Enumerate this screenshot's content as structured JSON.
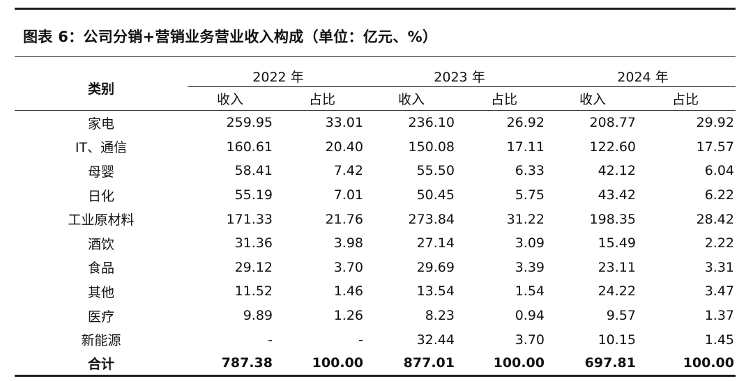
{
  "caption": "图表 6：公司分销+营销业务营业收入构成（单位：亿元、%）",
  "header": {
    "category_label": "类别",
    "years": [
      "2022 年",
      "2023 年",
      "2024 年"
    ],
    "revenue_label": "收入",
    "share_label": "占比"
  },
  "rows": [
    {
      "name": "家电",
      "v": [
        "259.95",
        "33.01",
        "236.10",
        "26.92",
        "208.77",
        "29.92"
      ]
    },
    {
      "name": "IT、通信",
      "v": [
        "160.61",
        "20.40",
        "150.08",
        "17.11",
        "122.60",
        "17.57"
      ]
    },
    {
      "name": "母婴",
      "v": [
        "58.41",
        "7.42",
        "55.50",
        "6.33",
        "42.12",
        "6.04"
      ]
    },
    {
      "name": "日化",
      "v": [
        "55.19",
        "7.01",
        "50.45",
        "5.75",
        "43.42",
        "6.22"
      ]
    },
    {
      "name": "工业原材料",
      "v": [
        "171.33",
        "21.76",
        "273.84",
        "31.22",
        "198.35",
        "28.42"
      ]
    },
    {
      "name": "酒饮",
      "v": [
        "31.36",
        "3.98",
        "27.14",
        "3.09",
        "15.49",
        "2.22"
      ]
    },
    {
      "name": "食品",
      "v": [
        "29.12",
        "3.70",
        "29.69",
        "3.39",
        "23.11",
        "3.31"
      ]
    },
    {
      "name": "其他",
      "v": [
        "11.52",
        "1.46",
        "13.54",
        "1.54",
        "24.22",
        "3.47"
      ]
    },
    {
      "name": "医疗",
      "v": [
        "9.89",
        "1.26",
        "8.23",
        "0.94",
        "9.57",
        "1.37"
      ]
    },
    {
      "name": "新能源",
      "v": [
        "-",
        "-",
        "32.44",
        "3.70",
        "10.15",
        "1.45"
      ]
    }
  ],
  "total": {
    "name": "合计",
    "v": [
      "787.38",
      "100.00",
      "877.01",
      "100.00",
      "697.81",
      "100.00"
    ]
  }
}
